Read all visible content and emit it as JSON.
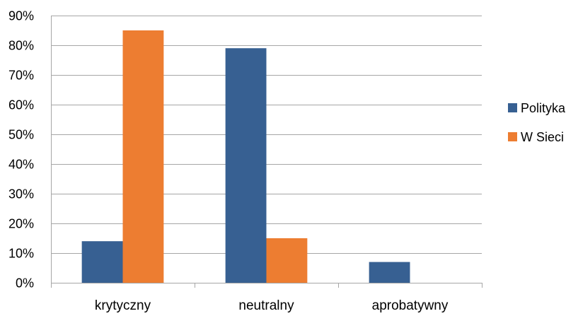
{
  "chart_data": {
    "type": "bar",
    "categories": [
      "krytyczny",
      "neutralny",
      "aprobatywny"
    ],
    "series": [
      {
        "name": "Polityka",
        "values": [
          14,
          79,
          7
        ],
        "color": "#376092"
      },
      {
        "name": "W Sieci",
        "values": [
          85,
          15,
          0
        ],
        "color": "#ED7D31"
      }
    ],
    "ylim": [
      0,
      90
    ],
    "y_ticks": [
      0,
      10,
      20,
      30,
      40,
      50,
      60,
      70,
      80,
      90
    ],
    "y_tick_labels": [
      "0%",
      "10%",
      "20%",
      "30%",
      "40%",
      "50%",
      "60%",
      "70%",
      "80%",
      "90%"
    ],
    "value_format": "percent",
    "grid": "horizontal",
    "legend_position": "right",
    "gridline_color": "#A6A6A6",
    "title": "",
    "xlabel": "",
    "ylabel": ""
  }
}
